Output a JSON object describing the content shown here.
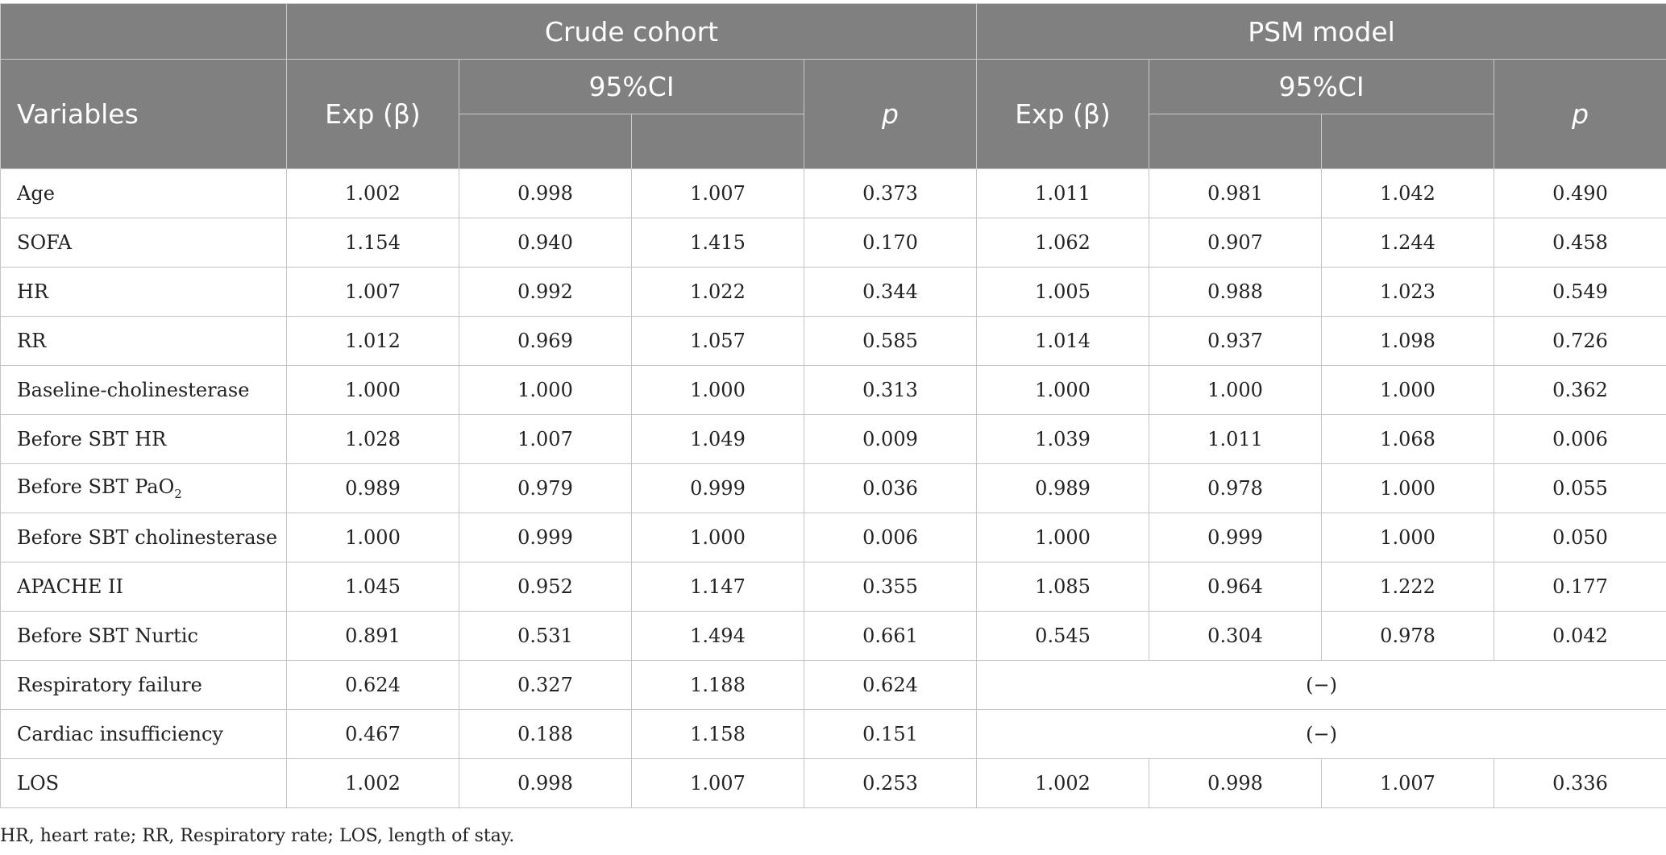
{
  "header": {
    "variables": "Variables",
    "crude_cohort": "Crude cohort",
    "psm_model": "PSM model",
    "exp_beta": "Exp (β)",
    "ci": "95%CI",
    "p": "p"
  },
  "rows": [
    {
      "label": "Age",
      "c": [
        "1.002",
        "0.998",
        "1.007",
        "0.373"
      ],
      "p": [
        "1.011",
        "0.981",
        "1.042",
        "0.490"
      ]
    },
    {
      "label": "SOFA",
      "c": [
        "1.154",
        "0.940",
        "1.415",
        "0.170"
      ],
      "p": [
        "1.062",
        "0.907",
        "1.244",
        "0.458"
      ]
    },
    {
      "label": "HR",
      "c": [
        "1.007",
        "0.992",
        "1.022",
        "0.344"
      ],
      "p": [
        "1.005",
        "0.988",
        "1.023",
        "0.549"
      ]
    },
    {
      "label": "RR",
      "c": [
        "1.012",
        "0.969",
        "1.057",
        "0.585"
      ],
      "p": [
        "1.014",
        "0.937",
        "1.098",
        "0.726"
      ]
    },
    {
      "label": "Baseline-cholinesterase",
      "c": [
        "1.000",
        "1.000",
        "1.000",
        "0.313"
      ],
      "p": [
        "1.000",
        "1.000",
        "1.000",
        "0.362"
      ]
    },
    {
      "label": "Before SBT HR",
      "c": [
        "1.028",
        "1.007",
        "1.049",
        "0.009"
      ],
      "p": [
        "1.039",
        "1.011",
        "1.068",
        "0.006"
      ]
    },
    {
      "label": "Before SBT PaO",
      "sub": "2",
      "c": [
        "0.989",
        "0.979",
        "0.999",
        "0.036"
      ],
      "p": [
        "0.989",
        "0.978",
        "1.000",
        "0.055"
      ]
    },
    {
      "label": "Before SBT cholinesterase",
      "c": [
        "1.000",
        "0.999",
        "1.000",
        "0.006"
      ],
      "p": [
        "1.000",
        "0.999",
        "1.000",
        "0.050"
      ]
    },
    {
      "label": "APACHE II",
      "c": [
        "1.045",
        "0.952",
        "1.147",
        "0.355"
      ],
      "p": [
        "1.085",
        "0.964",
        "1.222",
        "0.177"
      ]
    },
    {
      "label": "Before SBT Nurtic",
      "c": [
        "0.891",
        "0.531",
        "1.494",
        "0.661"
      ],
      "p": [
        "0.545",
        "0.304",
        "0.978",
        "0.042"
      ]
    },
    {
      "label": "Respiratory failure",
      "c": [
        "0.624",
        "0.327",
        "1.188",
        "0.624"
      ],
      "psm_span": "(−)"
    },
    {
      "label": "Cardiac insufficiency",
      "c": [
        "0.467",
        "0.188",
        "1.158",
        "0.151"
      ],
      "psm_span": "(−)"
    },
    {
      "label": "LOS",
      "c": [
        "1.002",
        "0.998",
        "1.007",
        "0.253"
      ],
      "p": [
        "1.002",
        "0.998",
        "1.007",
        "0.336"
      ]
    }
  ],
  "footnote": "HR, heart rate; RR, Respiratory rate; LOS, length of stay."
}
